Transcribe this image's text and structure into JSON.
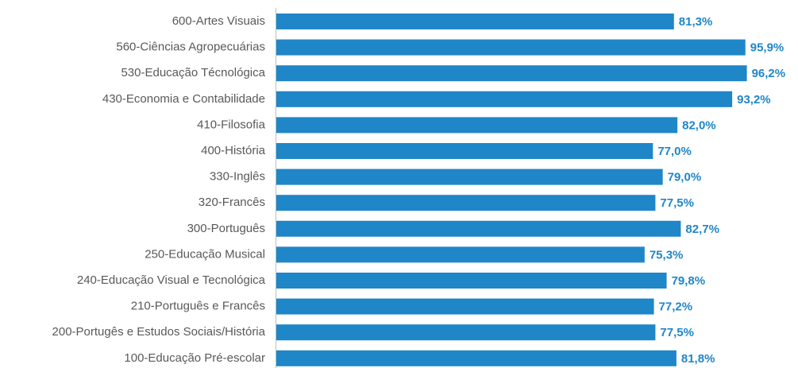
{
  "chart_data": {
    "type": "bar",
    "orientation": "horizontal",
    "color": "#1f86c8",
    "categories": [
      "600-Artes Visuais",
      "560-Ciências Agropecuárias",
      "530-Educação Técnológica",
      "430-Economia e Contabilidade",
      "410-Filosofia",
      "400-História",
      "330-Inglês",
      "320-Francês",
      "300-Português",
      "250-Educação Musical",
      "240-Educação Visual e Tecnológica",
      "210-Português e Francês",
      "200-Portugês e Estudos Sociais/História",
      "100-Educação Pré-escolar"
    ],
    "values": [
      81.3,
      95.9,
      96.2,
      93.2,
      82.0,
      77.0,
      79.0,
      77.5,
      82.7,
      75.3,
      79.8,
      77.2,
      77.5,
      81.8
    ],
    "value_labels": [
      "81,3%",
      "95,9%",
      "96,2%",
      "93,2%",
      "82,0%",
      "77,0%",
      "79,0%",
      "77,5%",
      "82,7%",
      "75,3%",
      "79,8%",
      "77,2%",
      "77,5%",
      "81,8%"
    ]
  }
}
